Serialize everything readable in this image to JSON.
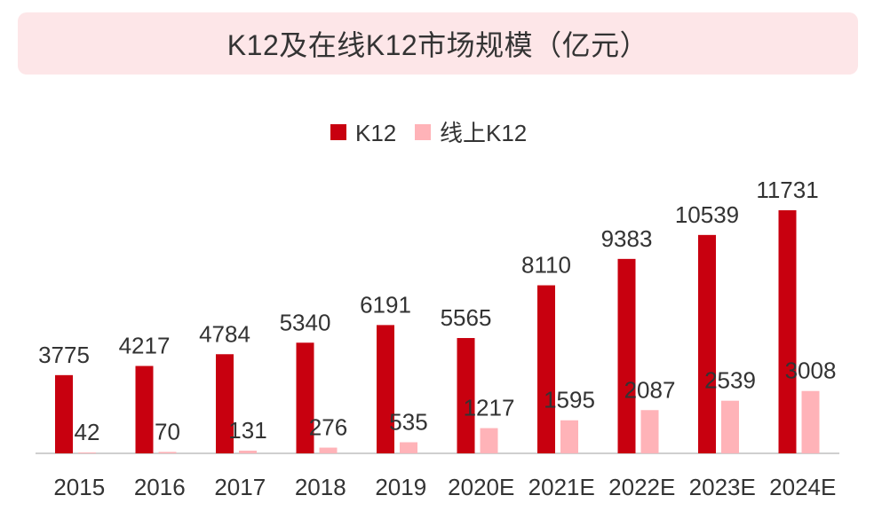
{
  "header": {
    "title": "K12及在线K12市场规模（亿元）"
  },
  "colors": {
    "k12": "#c8000f",
    "online": "#ffb3b8",
    "axis": "#bfbfbf",
    "label": "#333333",
    "title_bg": "#fde6e8"
  },
  "chart_data": {
    "type": "bar",
    "title": "K12及在线K12市场规模（亿元）",
    "xlabel": "",
    "ylabel": "",
    "ylim": [
      0,
      11731
    ],
    "legend_position": "top-center",
    "categories": [
      "2015",
      "2016",
      "2017",
      "2018",
      "2019",
      "2020E",
      "2021E",
      "2022E",
      "2023E",
      "2024E"
    ],
    "series": [
      {
        "name": "K12",
        "values": [
          3775,
          4217,
          4784,
          5340,
          6191,
          5565,
          8110,
          9383,
          10539,
          11731
        ]
      },
      {
        "name": "线上K12",
        "values": [
          42,
          70,
          131,
          276,
          535,
          1217,
          1595,
          2087,
          2539,
          3008
        ]
      }
    ]
  }
}
